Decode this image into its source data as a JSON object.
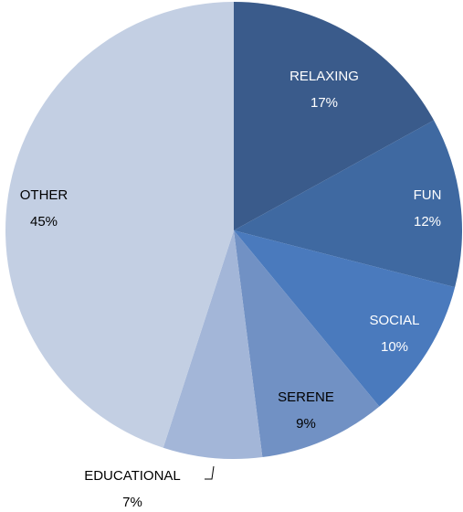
{
  "chart_data": {
    "type": "pie",
    "categories": [
      "RELAXING",
      "FUN",
      "SOCIAL",
      "SERENE",
      "EDUCATIONAL",
      "OTHER"
    ],
    "values": [
      17,
      12,
      10,
      9,
      7,
      45
    ],
    "value_labels": [
      "17%",
      "12%",
      "10%",
      "9%",
      "7%",
      "45%"
    ],
    "colors": [
      "#3a5b8b",
      "#3f69a1",
      "#4a7abd",
      "#7191c4",
      "#a3b6d8",
      "#c3cfe3"
    ]
  }
}
